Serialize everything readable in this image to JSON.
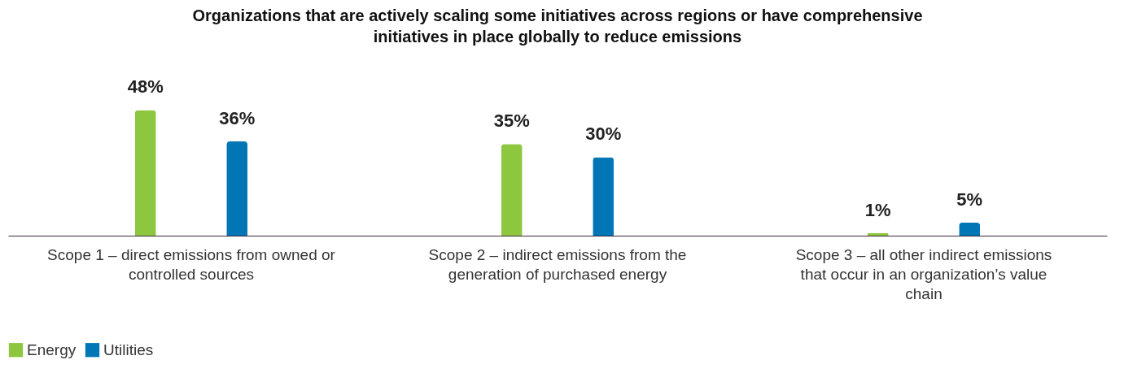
{
  "chart_data": {
    "type": "bar",
    "title": "Organizations that are actively scaling some initiatives across regions or have comprehensive initiatives in place globally to reduce emissions",
    "categories": [
      "Scope 1 – direct emissions from owned or controlled sources",
      "Scope 2 – indirect emissions from the generation of purchased energy",
      "Scope 3 – all other indirect emissions that occur in an organization’s value chain"
    ],
    "series": [
      {
        "name": "Energy",
        "color": "#8dc63f",
        "values": [
          48,
          35,
          1
        ],
        "value_labels": [
          "48%",
          "35%",
          "1%"
        ]
      },
      {
        "name": "Utilities",
        "color": "#0076b6",
        "values": [
          36,
          30,
          5
        ],
        "value_labels": [
          "36%",
          "30%",
          "5%"
        ]
      }
    ],
    "legend": "bottom",
    "grid": false
  }
}
